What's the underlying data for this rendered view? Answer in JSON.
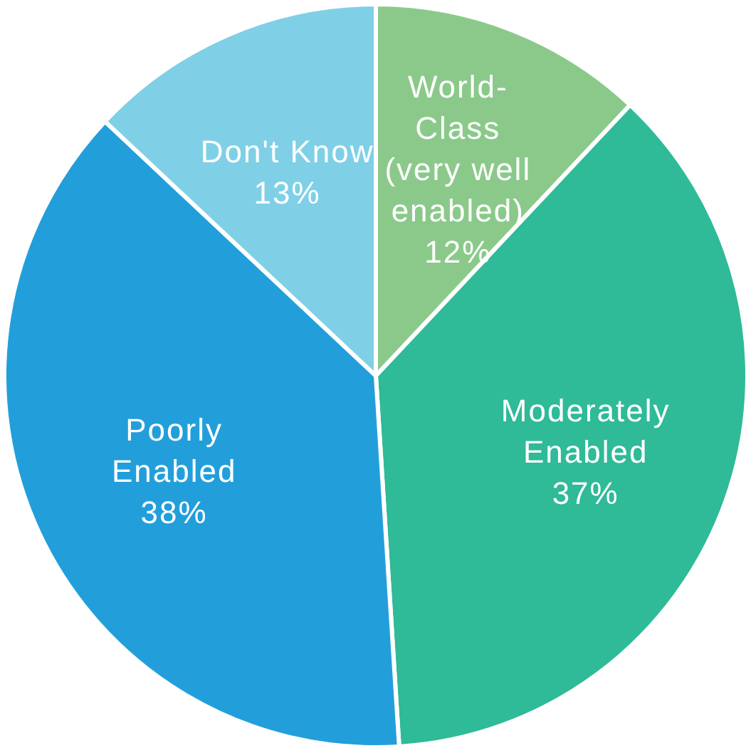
{
  "chart_data": {
    "type": "pie",
    "categories": [
      "World-Class (very well enabled)",
      "Moderately Enabled",
      "Poorly Enabled",
      "Don't Know"
    ],
    "values": [
      12,
      37,
      38,
      13
    ],
    "colors": [
      "#8bc98b",
      "#2fba98",
      "#229fdb",
      "#7fd0e6"
    ],
    "value_labels": [
      "12%",
      "37%",
      "38%",
      "13%"
    ]
  }
}
